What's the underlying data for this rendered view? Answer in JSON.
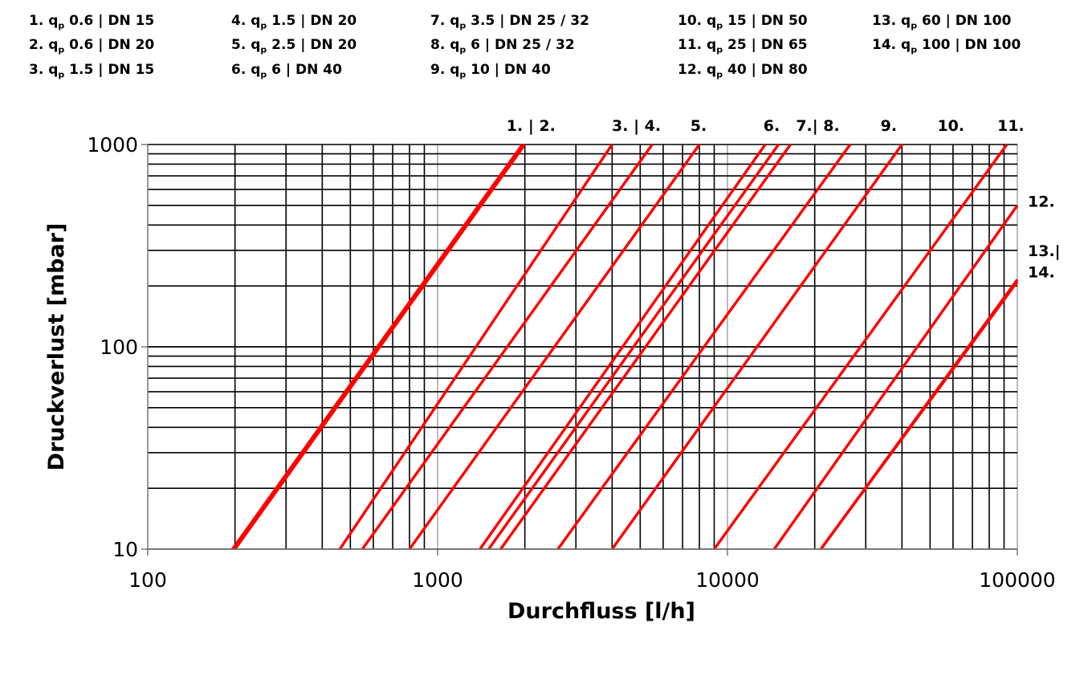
{
  "legend": [
    {
      "num": "1.",
      "q": "0.6",
      "dn": "DN 15"
    },
    {
      "num": "2.",
      "q": "0.6",
      "dn": "DN 20"
    },
    {
      "num": "3.",
      "q": "1.5",
      "dn": "DN 15"
    },
    {
      "num": "4.",
      "q": "1.5",
      "dn": "DN 20"
    },
    {
      "num": "5.",
      "q": "2.5",
      "dn": "DN 20"
    },
    {
      "num": "6.",
      "q": "6",
      "dn": "DN 40"
    },
    {
      "num": "7.",
      "q": "3.5",
      "dn": "DN 25 / 32"
    },
    {
      "num": "8.",
      "q": "6",
      "dn": "DN 25 / 32"
    },
    {
      "num": "9.",
      "q": "10",
      "dn": "DN 40"
    },
    {
      "num": "10.",
      "q": "15",
      "dn": "DN 50"
    },
    {
      "num": "11.",
      "q": "25",
      "dn": "DN 65"
    },
    {
      "num": "12.",
      "q": "40",
      "dn": "DN 80"
    },
    {
      "num": "13.",
      "q": "60",
      "dn": "DN 100"
    },
    {
      "num": "14.",
      "q": "100",
      "dn": "DN 100"
    }
  ],
  "chart_data": {
    "type": "line",
    "xlabel": "Durchfluss [l/h]",
    "ylabel": "Druckverlust [mbar]",
    "xscale": "log",
    "yscale": "log",
    "xlim": [
      100,
      100000
    ],
    "ylim": [
      10,
      1000
    ],
    "x_ticks": [
      "100",
      "1000",
      "10000",
      "100000"
    ],
    "y_ticks": [
      "10",
      "100",
      "1000"
    ],
    "grid": true,
    "line_color": "#ff0000",
    "series": [
      {
        "name": "1.",
        "x": [
          200,
          2000
        ],
        "y": [
          10,
          1000
        ]
      },
      {
        "name": "2.",
        "x": [
          196,
          1960
        ],
        "y": [
          10,
          1000
        ]
      },
      {
        "name": "3.",
        "x": [
          460,
          4000
        ],
        "y": [
          10,
          1000
        ]
      },
      {
        "name": "4.",
        "x": [
          550,
          5500
        ],
        "y": [
          10,
          1000
        ]
      },
      {
        "name": "5.",
        "x": [
          800,
          8000
        ],
        "y": [
          10,
          1000
        ]
      },
      {
        "name": "6.",
        "x": [
          1400,
          13500
        ],
        "y": [
          10,
          1000
        ]
      },
      {
        "name": "7.",
        "x": [
          1650,
          16500
        ],
        "y": [
          10,
          1000
        ]
      },
      {
        "name": "8.",
        "x": [
          1500,
          15000
        ],
        "y": [
          10,
          1000
        ]
      },
      {
        "name": "9.",
        "x": [
          2600,
          26500
        ],
        "y": [
          10,
          1000
        ]
      },
      {
        "name": "10.",
        "x": [
          4000,
          40000
        ],
        "y": [
          10,
          1000
        ]
      },
      {
        "name": "11.",
        "x": [
          9000,
          92000
        ],
        "y": [
          10,
          1000
        ]
      },
      {
        "name": "12.",
        "x": [
          14500,
          100000
        ],
        "y": [
          10,
          500
        ]
      },
      {
        "name": "13.",
        "x": [
          21000,
          100000
        ],
        "y": [
          10,
          210
        ]
      },
      {
        "name": "14.",
        "x": [
          21000,
          100000
        ],
        "y": [
          10,
          215
        ]
      }
    ],
    "top_labels": [
      {
        "text": "1. | 2.",
        "x": 2100
      },
      {
        "text": "3. | 4.",
        "x": 4850
      },
      {
        "text": "5.",
        "x": 7950
      },
      {
        "text": "6.",
        "x": 14200
      },
      {
        "text": "7.| 8.",
        "x": 20500
      },
      {
        "text": "9.",
        "x": 36000
      },
      {
        "text": "10.",
        "x": 59000
      },
      {
        "text": "11.",
        "x": 95000
      }
    ],
    "right_labels": [
      {
        "text": "12.",
        "y": 525
      },
      {
        "text": "13.|",
        "y": 300
      },
      {
        "text": "14.",
        "y": 235
      }
    ]
  }
}
